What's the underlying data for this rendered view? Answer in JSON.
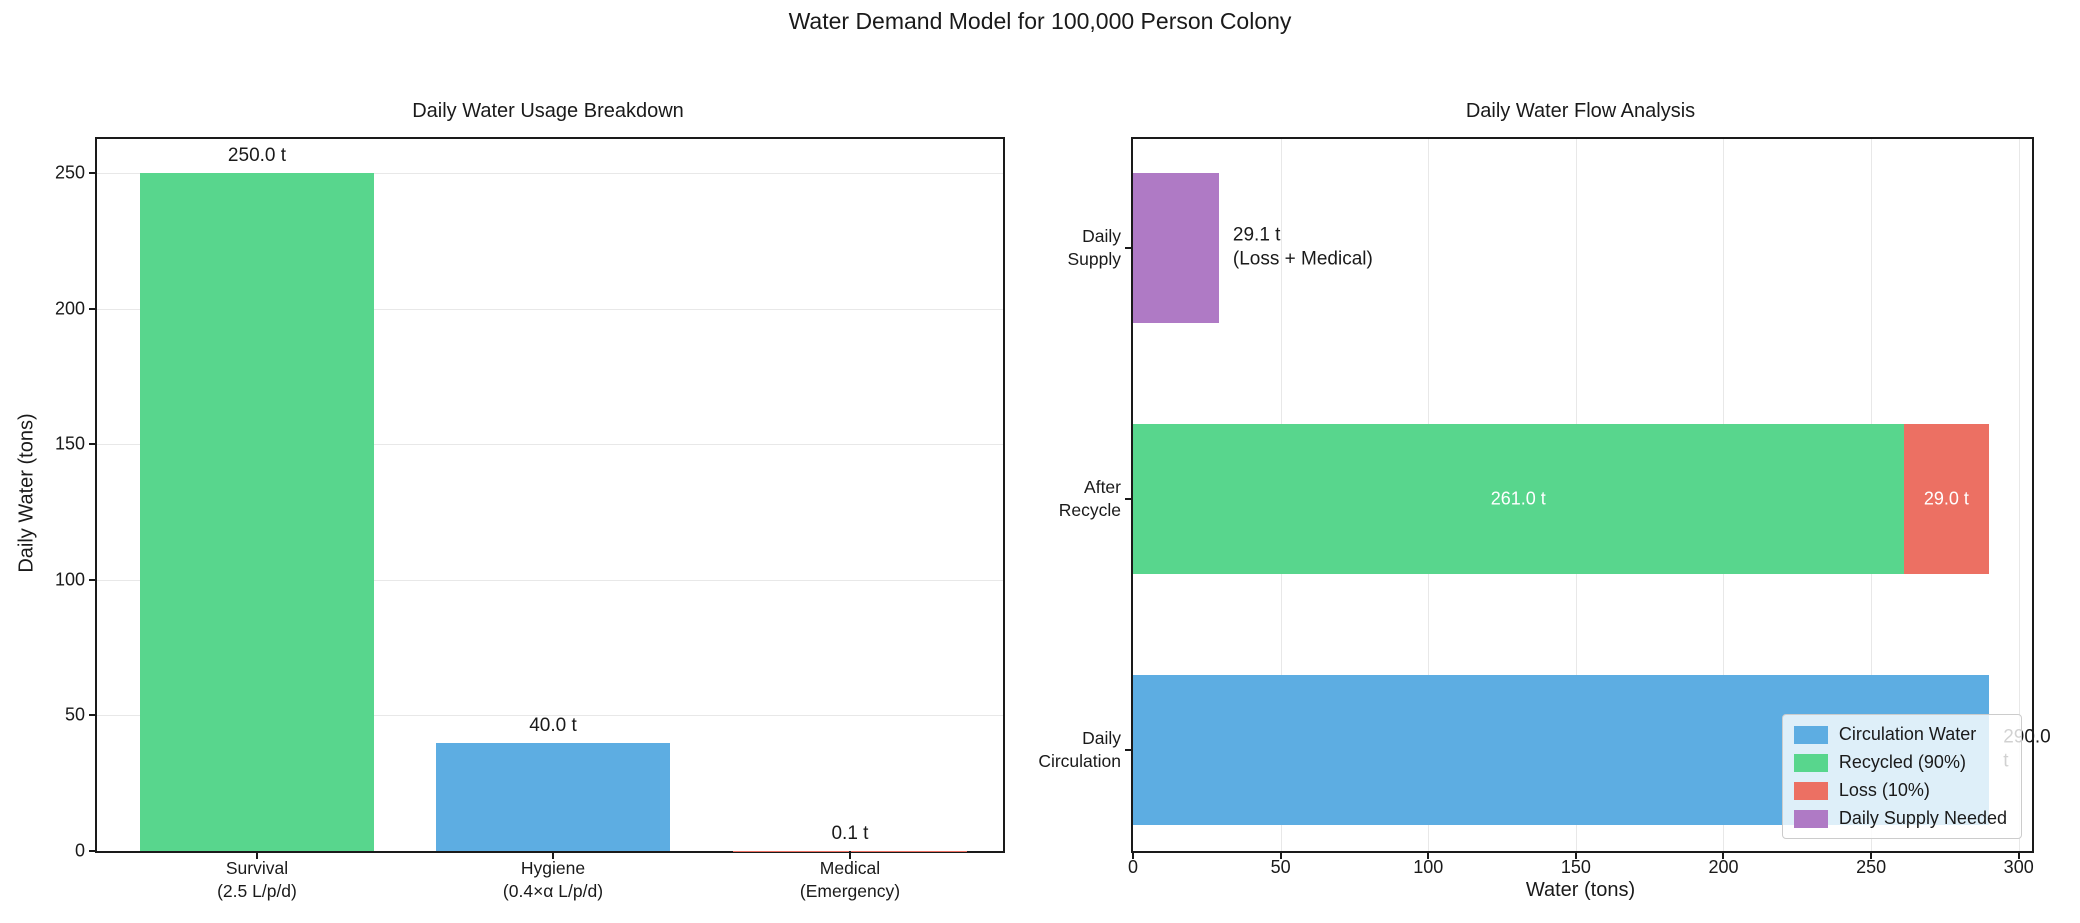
{
  "figure": {
    "title": "Water Demand Model for 100,000 Person Colony"
  },
  "chart_data": [
    {
      "type": "bar",
      "title": "Daily Water Usage Breakdown",
      "ylabel": "Daily Water (tons)",
      "ylim": [
        0,
        262.5
      ],
      "yticks": [
        0,
        50,
        100,
        150,
        200,
        250
      ],
      "grid": "horizontal",
      "categories": [
        "Survival\n(2.5 L/p/d)",
        "Hygiene\n(0.4×α L/p/d)",
        "Medical\n(Emergency)"
      ],
      "values": [
        250.0,
        40.0,
        0.1
      ],
      "bar_labels": [
        "250.0 t",
        "40.0 t",
        "0.1 t"
      ],
      "bar_colors": [
        "#58D68D",
        "#5DADE2",
        "#EC7063"
      ]
    },
    {
      "type": "barh",
      "title": "Daily Water Flow Analysis",
      "xlabel": "Water (tons)",
      "xlim": [
        0,
        304.5
      ],
      "xticks": [
        0,
        50,
        100,
        150,
        200,
        250,
        300
      ],
      "grid": "vertical",
      "categories": [
        "Daily\nSupply",
        "After\nRecycle",
        "Daily\nCirculation"
      ],
      "rows": [
        {
          "category": "Daily\nSupply",
          "segments": [
            {
              "name": "Daily Supply Needed",
              "value": 29.1,
              "color": "#AF7AC5"
            }
          ],
          "outside_label": "29.1 t\n(Loss + Medical)"
        },
        {
          "category": "After\nRecycle",
          "segments": [
            {
              "name": "Recycled (90%)",
              "value": 261.0,
              "color": "#58D68D",
              "label": "261.0 t"
            },
            {
              "name": "Loss (10%)",
              "value": 29.0,
              "color": "#EC7063",
              "label": "29.0 t"
            }
          ]
        },
        {
          "category": "Daily\nCirculation",
          "segments": [
            {
              "name": "Circulation Water",
              "value": 290.0,
              "color": "#5DADE2"
            }
          ],
          "outside_label": "290.0 t"
        }
      ],
      "legend": {
        "position": "lower right",
        "items": [
          {
            "label": "Circulation Water",
            "color": "#5DADE2"
          },
          {
            "label": "Recycled (90%)",
            "color": "#58D68D"
          },
          {
            "label": "Loss (10%)",
            "color": "#EC7063"
          },
          {
            "label": "Daily Supply Needed",
            "color": "#AF7AC5"
          }
        ]
      }
    }
  ]
}
